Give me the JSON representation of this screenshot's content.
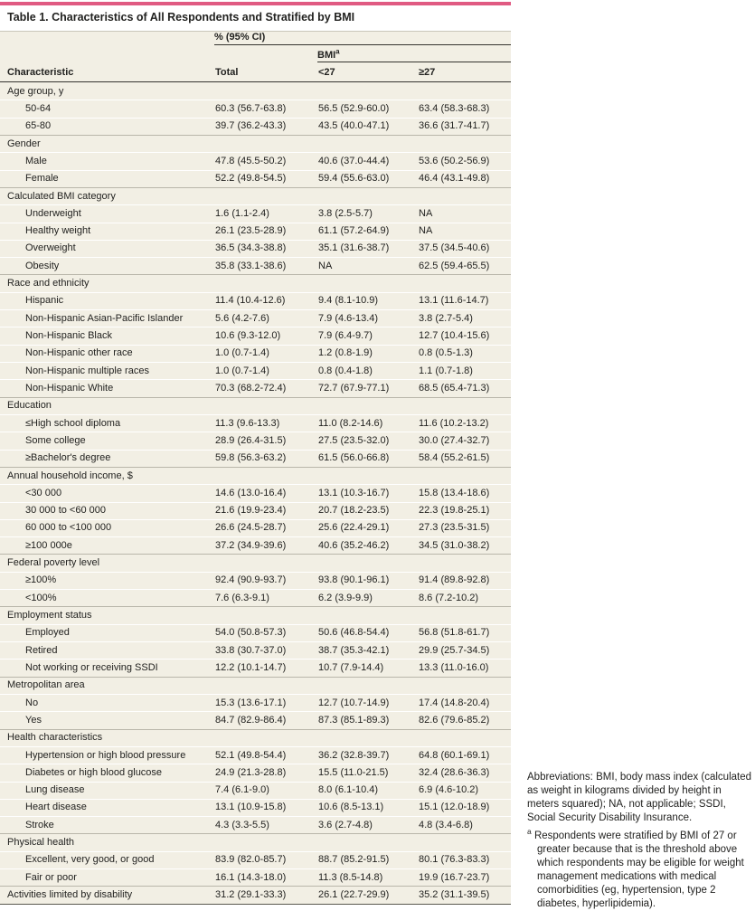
{
  "title": "Table 1. Characteristics of All Respondents and Stratified by BMI",
  "header": {
    "pct_ci": "% (95% CI)",
    "bmi": "BMI",
    "bmi_superscript": "a",
    "characteristic": "Characteristic",
    "total": "Total",
    "bmi_lt27": "<27",
    "bmi_ge27": "≥27"
  },
  "table": {
    "rows": [
      {
        "type": "section",
        "label": "Age group, y"
      },
      {
        "type": "data",
        "label": "50-64",
        "total": "60.3 (56.7-63.8)",
        "bmi_lt27": "56.5 (52.9-60.0)",
        "bmi_ge27": "63.4 (58.3-68.3)"
      },
      {
        "type": "data",
        "label": "65-80",
        "total": "39.7 (36.2-43.3)",
        "bmi_lt27": "43.5 (40.0-47.1)",
        "bmi_ge27": "36.6 (31.7-41.7)"
      },
      {
        "type": "section",
        "label": "Gender"
      },
      {
        "type": "data",
        "label": "Male",
        "total": "47.8 (45.5-50.2)",
        "bmi_lt27": "40.6 (37.0-44.4)",
        "bmi_ge27": "53.6 (50.2-56.9)"
      },
      {
        "type": "data",
        "label": "Female",
        "total": "52.2 (49.8-54.5)",
        "bmi_lt27": "59.4 (55.6-63.0)",
        "bmi_ge27": "46.4 (43.1-49.8)"
      },
      {
        "type": "section",
        "label": "Calculated BMI category"
      },
      {
        "type": "data",
        "label": "Underweight",
        "total": "1.6 (1.1-2.4)",
        "bmi_lt27": "3.8 (2.5-5.7)",
        "bmi_ge27": "NA"
      },
      {
        "type": "data",
        "label": "Healthy weight",
        "total": "26.1 (23.5-28.9)",
        "bmi_lt27": "61.1 (57.2-64.9)",
        "bmi_ge27": "NA"
      },
      {
        "type": "data",
        "label": "Overweight",
        "total": "36.5 (34.3-38.8)",
        "bmi_lt27": "35.1 (31.6-38.7)",
        "bmi_ge27": "37.5 (34.5-40.6)"
      },
      {
        "type": "data",
        "label": "Obesity",
        "total": "35.8 (33.1-38.6)",
        "bmi_lt27": "NA",
        "bmi_ge27": "62.5 (59.4-65.5)"
      },
      {
        "type": "section",
        "label": "Race and ethnicity"
      },
      {
        "type": "data",
        "label": "Hispanic",
        "total": "11.4 (10.4-12.6)",
        "bmi_lt27": "9.4 (8.1-10.9)",
        "bmi_ge27": "13.1 (11.6-14.7)"
      },
      {
        "type": "data",
        "label": "Non-Hispanic Asian-Pacific Islander",
        "total": "5.6 (4.2-7.6)",
        "bmi_lt27": "7.9 (4.6-13.4)",
        "bmi_ge27": "3.8 (2.7-5.4)"
      },
      {
        "type": "data",
        "label": "Non-Hispanic Black",
        "total": "10.6 (9.3-12.0)",
        "bmi_lt27": "7.9 (6.4-9.7)",
        "bmi_ge27": "12.7 (10.4-15.6)"
      },
      {
        "type": "data",
        "label": "Non-Hispanic other race",
        "total": "1.0 (0.7-1.4)",
        "bmi_lt27": "1.2 (0.8-1.9)",
        "bmi_ge27": "0.8 (0.5-1.3)"
      },
      {
        "type": "data",
        "label": "Non-Hispanic multiple races",
        "total": "1.0 (0.7-1.4)",
        "bmi_lt27": "0.8 (0.4-1.8)",
        "bmi_ge27": "1.1 (0.7-1.8)"
      },
      {
        "type": "data",
        "label": "Non-Hispanic White",
        "total": "70.3 (68.2-72.4)",
        "bmi_lt27": "72.7 (67.9-77.1)",
        "bmi_ge27": "68.5 (65.4-71.3)"
      },
      {
        "type": "section",
        "label": "Education"
      },
      {
        "type": "data",
        "label": "≤High school diploma",
        "total": "11.3 (9.6-13.3)",
        "bmi_lt27": "11.0 (8.2-14.6)",
        "bmi_ge27": "11.6 (10.2-13.2)"
      },
      {
        "type": "data",
        "label": "Some college",
        "total": "28.9 (26.4-31.5)",
        "bmi_lt27": "27.5 (23.5-32.0)",
        "bmi_ge27": "30.0 (27.4-32.7)"
      },
      {
        "type": "data",
        "label": "≥Bachelor's degree",
        "total": "59.8 (56.3-63.2)",
        "bmi_lt27": "61.5 (56.0-66.8)",
        "bmi_ge27": "58.4 (55.2-61.5)"
      },
      {
        "type": "section",
        "label": "Annual household income, $"
      },
      {
        "type": "data",
        "label": "<30 000",
        "total": "14.6 (13.0-16.4)",
        "bmi_lt27": "13.1 (10.3-16.7)",
        "bmi_ge27": "15.8 (13.4-18.6)"
      },
      {
        "type": "data",
        "label": "30 000 to <60 000",
        "total": "21.6 (19.9-23.4)",
        "bmi_lt27": "20.7 (18.2-23.5)",
        "bmi_ge27": "22.3 (19.8-25.1)"
      },
      {
        "type": "data",
        "label": "60 000 to <100 000",
        "total": "26.6 (24.5-28.7)",
        "bmi_lt27": "25.6 (22.4-29.1)",
        "bmi_ge27": "27.3 (23.5-31.5)"
      },
      {
        "type": "data",
        "label": "≥100 000e",
        "total": "37.2 (34.9-39.6)",
        "bmi_lt27": "40.6 (35.2-46.2)",
        "bmi_ge27": "34.5 (31.0-38.2)"
      },
      {
        "type": "section",
        "label": "Federal poverty level"
      },
      {
        "type": "data",
        "label": "≥100%",
        "total": "92.4 (90.9-93.7)",
        "bmi_lt27": "93.8 (90.1-96.1)",
        "bmi_ge27": "91.4 (89.8-92.8)"
      },
      {
        "type": "data",
        "label": "<100%",
        "total": "7.6 (6.3-9.1)",
        "bmi_lt27": "6.2 (3.9-9.9)",
        "bmi_ge27": "8.6 (7.2-10.2)"
      },
      {
        "type": "section",
        "label": "Employment status"
      },
      {
        "type": "data",
        "label": "Employed",
        "total": "54.0 (50.8-57.3)",
        "bmi_lt27": "50.6 (46.8-54.4)",
        "bmi_ge27": "56.8 (51.8-61.7)"
      },
      {
        "type": "data",
        "label": "Retired",
        "total": "33.8 (30.7-37.0)",
        "bmi_lt27": "38.7 (35.3-42.1)",
        "bmi_ge27": "29.9 (25.7-34.5)"
      },
      {
        "type": "data",
        "label": "Not working or receiving SSDI",
        "total": "12.2 (10.1-14.7)",
        "bmi_lt27": "10.7 (7.9-14.4)",
        "bmi_ge27": "13.3 (11.0-16.0)"
      },
      {
        "type": "section",
        "label": "Metropolitan area"
      },
      {
        "type": "data",
        "label": "No",
        "total": "15.3 (13.6-17.1)",
        "bmi_lt27": "12.7 (10.7-14.9)",
        "bmi_ge27": "17.4 (14.8-20.4)"
      },
      {
        "type": "data",
        "label": "Yes",
        "total": "84.7 (82.9-86.4)",
        "bmi_lt27": "87.3 (85.1-89.3)",
        "bmi_ge27": "82.6 (79.6-85.2)"
      },
      {
        "type": "section",
        "label": "Health characteristics"
      },
      {
        "type": "data",
        "label": "Hypertension or high blood pressure",
        "total": "52.1 (49.8-54.4)",
        "bmi_lt27": "36.2 (32.8-39.7)",
        "bmi_ge27": "64.8 (60.1-69.1)"
      },
      {
        "type": "data",
        "label": "Diabetes or high blood glucose",
        "total": "24.9 (21.3-28.8)",
        "bmi_lt27": "15.5 (11.0-21.5)",
        "bmi_ge27": "32.4 (28.6-36.3)"
      },
      {
        "type": "data",
        "label": "Lung disease",
        "total": "7.4 (6.1-9.0)",
        "bmi_lt27": "8.0 (6.1-10.4)",
        "bmi_ge27": "6.9 (4.6-10.2)"
      },
      {
        "type": "data",
        "label": "Heart disease",
        "total": "13.1 (10.9-15.8)",
        "bmi_lt27": "10.6 (8.5-13.1)",
        "bmi_ge27": "15.1 (12.0-18.9)"
      },
      {
        "type": "data",
        "label": "Stroke",
        "total": "4.3 (3.3-5.5)",
        "bmi_lt27": "3.6 (2.7-4.8)",
        "bmi_ge27": "4.8 (3.4-6.8)"
      },
      {
        "type": "section",
        "label": "Physical health"
      },
      {
        "type": "data",
        "label": "Excellent, very good, or good",
        "total": "83.9 (82.0-85.7)",
        "bmi_lt27": "88.7 (85.2-91.5)",
        "bmi_ge27": "80.1 (76.3-83.3)"
      },
      {
        "type": "data",
        "label": "Fair or poor",
        "total": "16.1 (14.3-18.0)",
        "bmi_lt27": "11.3 (8.5-14.8)",
        "bmi_ge27": "19.9 (16.7-23.7)"
      },
      {
        "type": "data_flush",
        "label": "Activities limited by disability",
        "total": "31.2 (29.1-33.3)",
        "bmi_lt27": "26.1 (22.7-29.9)",
        "bmi_ge27": "35.2 (31.1-39.5)"
      }
    ]
  },
  "footnotes": {
    "abbreviations": "Abbreviations: BMI, body mass index (calculated as weight in kilograms divided by height in meters squared); NA, not applicable; SSDI, Social Security Disability Insurance.",
    "a_marker": "a",
    "a_text": "Respondents were stratified by BMI of 27 or greater because that is the threshold above which respondents may be eligible for weight management medications with medical comorbidities (eg, hypertension, type 2 diabetes, hyperlipidemia)."
  },
  "colors": {
    "accent_rule": "#e05a82",
    "table_background": "#f2efe4",
    "row_separator": "#ffffff",
    "section_separator": "#b9b6aa",
    "strong_rule": "#35342f",
    "bottom_rule": "#5a594f",
    "title_rule": "#c9c6ba",
    "text": "#222220"
  }
}
